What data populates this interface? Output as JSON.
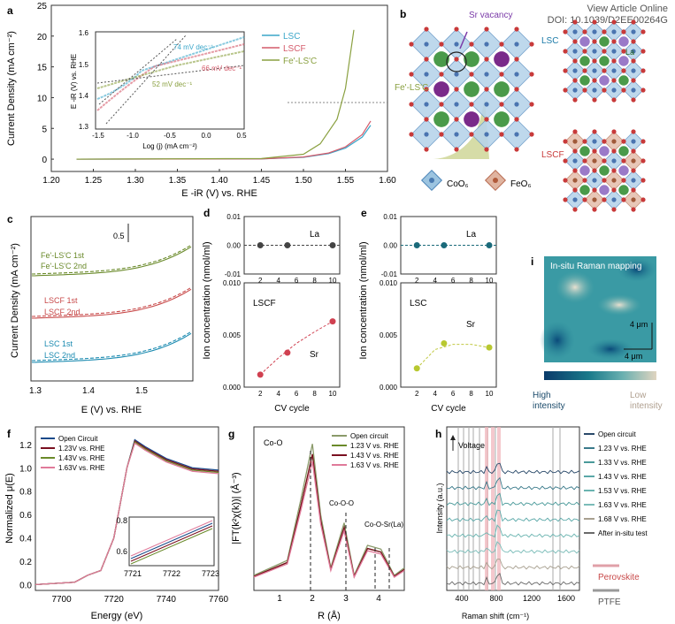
{
  "header": {
    "link_text": "View Article Online",
    "doi": "DOI: 10.1039/D2EE00264G"
  },
  "panel_labels": {
    "a": "a",
    "b": "b",
    "c": "c",
    "d": "d",
    "e": "e",
    "f": "f",
    "g": "g",
    "h": "h",
    "i": "i"
  },
  "colors": {
    "lsc": "#3aa6c9",
    "lscf": "#d45a6a",
    "fe": "#8aa040",
    "dark": "#1a4a8a",
    "maroon": "#7a1020",
    "darkgreen": "#6a8a2a",
    "pink": "#e07a9a"
  },
  "panel_a": {
    "ylabel": "Current Density (mA cm⁻²)",
    "xlabel": "E -iR (V) vs. RHE",
    "legend": [
      "LSC",
      "LSCF",
      "Fe'-LS'C"
    ],
    "inset": {
      "ylabel": "E -iR (V) vs. RHE",
      "xlabel": "Log (j) (mA cm⁻²)",
      "tafel": [
        "74 mV dec⁻¹",
        "66 mV dec⁻¹",
        "52 mV dec⁻¹"
      ]
    }
  },
  "panel_b": {
    "vacancy": "Sr vacancy",
    "fe": "Fe'-LS'C",
    "lsc": "LSC",
    "lscf": "LSCF",
    "la": "La",
    "co_label": "CoO₆",
    "fe_label": "FeO₆"
  },
  "panel_c": {
    "ylabel": "Current Density (mA cm⁻²)",
    "xlabel": "E (V) vs. RHE",
    "scale": "0.5",
    "legend": [
      "Fe'-LS'C 1st",
      "Fe'-LS'C 2nd",
      "LSCF 1st",
      "LSCF 2nd",
      "LSC 1st",
      "LSC 2nd"
    ]
  },
  "panel_d": {
    "ylabel": "Ion concentration (nmol/ml)",
    "xlabel": "CV cycle",
    "top_label": "La",
    "sample": "LSCF",
    "bottom_label": "Sr"
  },
  "panel_e": {
    "ylabel": "Ion concentration (nmol/ml)",
    "xlabel": "CV cycle",
    "top_label": "La",
    "sample": "LSC",
    "bottom_label": "Sr"
  },
  "panel_f": {
    "ylabel": "Normalized μ(E)",
    "xlabel": "Energy (eV)",
    "legend": [
      "Open Circuit",
      "1.23V vs. RHE",
      "1.43V vs. RHE",
      "1.63V vs. RHE"
    ]
  },
  "panel_g": {
    "ylabel": "|FT(k²χ(k))| (Å⁻³)",
    "xlabel": "R (Å)",
    "legend": [
      "Open circuit",
      "1.23 V vs. RHE",
      "1.43 V vs. RHE",
      "1.63 V vs. RHE"
    ],
    "peaks": [
      "Co-O",
      "Co-O-O",
      "Co-O-Sr(La)"
    ]
  },
  "panel_h": {
    "ylabel": "Intensity (a.u.)",
    "xlabel": "Raman shift (cm⁻¹)",
    "arrow": "Voltage",
    "legend": [
      "Open circuit",
      "1.23 V vs. RHE",
      "1.33 V vs. RHE",
      "1.43 V vs. RHE",
      "1.53 V vs. RHE",
      "1.63 V vs. RHE",
      "1.68 V vs. RHE",
      "After in-situ test"
    ],
    "ref_perovskite": "Perovskite",
    "ref_ptfe": "PTFE"
  },
  "panel_i": {
    "title": "In-situ Raman mapping",
    "scale_v": "4 μm",
    "scale_h": "4 μm",
    "high": "High\nintensity",
    "low": "Low\nintensity"
  },
  "chart_data": [
    {
      "type": "line",
      "title": "",
      "xlabel": "E -iR (V) vs. RHE",
      "ylabel": "Current Density (mA cm⁻²)",
      "xlim": [
        1.2,
        1.6
      ],
      "ylim": [
        -2,
        25
      ],
      "x_ticks": [
        1.2,
        1.25,
        1.3,
        1.35,
        1.4,
        1.45,
        1.5,
        1.55,
        1.6
      ],
      "y_ticks": [
        0,
        5,
        10,
        15,
        20,
        25
      ],
      "series": [
        {
          "name": "LSC",
          "x": [
            1.23,
            1.45,
            1.5,
            1.53,
            1.55,
            1.57,
            1.58
          ],
          "y": [
            0,
            0.05,
            0.3,
            0.9,
            1.8,
            3.6,
            5.5
          ]
        },
        {
          "name": "LSCF",
          "x": [
            1.23,
            1.45,
            1.5,
            1.53,
            1.55,
            1.57,
            1.58
          ],
          "y": [
            0,
            0.05,
            0.35,
            1.0,
            2.0,
            4.0,
            6.2
          ]
        },
        {
          "name": "Fe'-LS'C",
          "x": [
            1.23,
            1.45,
            1.5,
            1.52,
            1.54,
            1.55,
            1.56
          ],
          "y": [
            0,
            0.1,
            0.8,
            2.5,
            6.5,
            11.5,
            21
          ]
        }
      ]
    },
    {
      "type": "scatter",
      "title": "",
      "xlabel": "CV cycle",
      "ylabel": "Ion concentration (nmol/ml)",
      "panel": "d-La",
      "x": [
        2,
        5,
        10
      ],
      "y": [
        0,
        0,
        0
      ],
      "ylim": [
        -0.01,
        0.01
      ]
    },
    {
      "type": "scatter",
      "title": "",
      "xlabel": "CV cycle",
      "ylabel": "Ion concentration (nmol/ml)",
      "panel": "d-Sr LSCF",
      "x": [
        2,
        5,
        10
      ],
      "y": [
        0.0012,
        0.0033,
        0.0063
      ],
      "ylim": [
        0,
        0.01
      ]
    },
    {
      "type": "scatter",
      "title": "",
      "xlabel": "CV cycle",
      "ylabel": "Ion concentration (nmol/ml)",
      "panel": "e-La",
      "x": [
        2,
        5,
        10
      ],
      "y": [
        0,
        0,
        0
      ],
      "ylim": [
        -0.01,
        0.01
      ]
    },
    {
      "type": "scatter",
      "title": "",
      "xlabel": "CV cycle",
      "ylabel": "Ion concentration (nmol/ml)",
      "panel": "e-Sr LSC",
      "x": [
        2,
        5,
        10
      ],
      "y": [
        0.0018,
        0.0042,
        0.0038
      ],
      "ylim": [
        0,
        0.01
      ]
    },
    {
      "type": "line",
      "title": "",
      "xlabel": "Energy (eV)",
      "ylabel": "Normalized μ(E)",
      "xlim": [
        7690,
        7760
      ],
      "ylim": [
        -0.05,
        1.35
      ],
      "x_ticks": [
        7700,
        7720,
        7740,
        7760
      ],
      "y_ticks": [
        0.0,
        0.2,
        0.4,
        0.6,
        0.8,
        1.0,
        1.2
      ],
      "series": [
        {
          "name": "Open Circuit",
          "x": [
            7690,
            7705,
            7710,
            7715,
            7720,
            7725,
            7728,
            7732,
            7740,
            7750,
            7760
          ],
          "y": [
            0,
            0.02,
            0.08,
            0.12,
            0.4,
            1.0,
            1.24,
            1.18,
            1.08,
            1.0,
            0.98
          ]
        }
      ]
    },
    {
      "type": "line",
      "title": "",
      "xlabel": "R (Å)",
      "ylabel": "|FT(k²χ(k))| (Å⁻³)",
      "xlim": [
        0,
        4.5
      ],
      "x_ticks": [
        1,
        2,
        3,
        4
      ],
      "series": [
        {
          "name": "Open circuit",
          "x": [
            0,
            0.5,
            1.0,
            1.4,
            1.75,
            2.0,
            2.3,
            2.7,
            3.0,
            3.4,
            3.8,
            4.2,
            4.5
          ],
          "y": [
            0.2,
            0.3,
            0.4,
            1.2,
            1.95,
            1.0,
            0.3,
            0.9,
            0.2,
            0.6,
            0.55,
            0.2,
            0.3
          ]
        }
      ]
    },
    {
      "type": "line",
      "title": "",
      "xlabel": "Raman shift (cm⁻¹)",
      "ylabel": "Intensity (a.u.)",
      "xlim": [
        100,
        1600
      ],
      "x_ticks": [
        400,
        800,
        1200,
        1600
      ]
    }
  ]
}
